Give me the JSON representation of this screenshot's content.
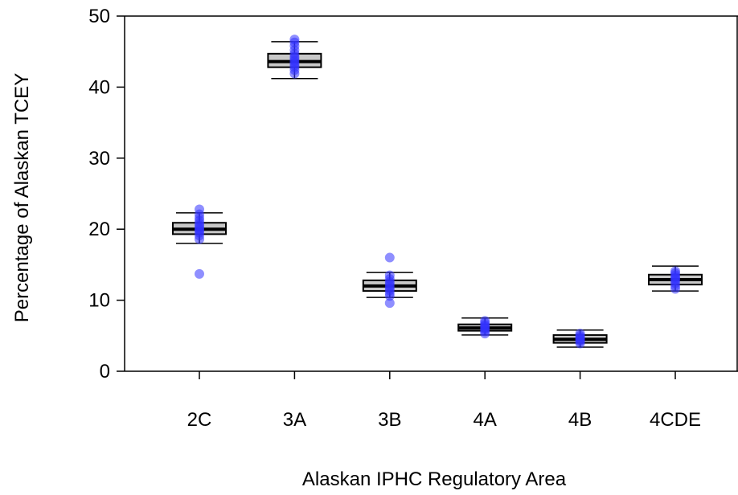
{
  "chart_data": {
    "type": "boxplot",
    "title": "",
    "xlabel": "Alaskan IPHC Regulatory Area",
    "ylabel": "Percentage of Alaskan TCEY",
    "ylim": [
      0,
      50
    ],
    "yticks": [
      0,
      10,
      20,
      30,
      40,
      50
    ],
    "categories": [
      "2C",
      "3A",
      "3B",
      "4A",
      "4B",
      "4CDE"
    ],
    "boxes": [
      {
        "category": "2C",
        "whisker_low": 18.0,
        "q1": 19.3,
        "median": 20.0,
        "q3": 20.9,
        "whisker_high": 22.3,
        "points": [
          13.7,
          18.6,
          19.1,
          19.5,
          19.8,
          20.0,
          20.2,
          20.5,
          20.8,
          21.2,
          21.6,
          22.1,
          22.8
        ]
      },
      {
        "category": "3A",
        "whisker_low": 41.2,
        "q1": 42.8,
        "median": 43.6,
        "q3": 44.7,
        "whisker_high": 46.4,
        "points": [
          41.9,
          42.4,
          42.8,
          43.1,
          43.4,
          43.7,
          44.0,
          44.3,
          44.7,
          45.2,
          45.8,
          46.3,
          46.7
        ]
      },
      {
        "category": "3B",
        "whisker_low": 10.4,
        "q1": 11.3,
        "median": 12.0,
        "q3": 12.8,
        "whisker_high": 13.9,
        "points": [
          9.6,
          10.6,
          11.0,
          11.4,
          11.7,
          12.0,
          12.3,
          12.6,
          13.0,
          13.5,
          16.0
        ]
      },
      {
        "category": "4A",
        "whisker_low": 5.1,
        "q1": 5.7,
        "median": 6.1,
        "q3": 6.6,
        "whisker_high": 7.5,
        "points": [
          5.3,
          5.6,
          5.9,
          6.1,
          6.3,
          6.5,
          6.8,
          7.1
        ]
      },
      {
        "category": "4B",
        "whisker_low": 3.4,
        "q1": 4.0,
        "median": 4.5,
        "q3": 5.1,
        "whisker_high": 5.8,
        "points": [
          3.9,
          4.2,
          4.4,
          4.6,
          4.8,
          5.0,
          5.3
        ]
      },
      {
        "category": "4CDE",
        "whisker_low": 11.3,
        "q1": 12.2,
        "median": 12.9,
        "q3": 13.6,
        "whisker_high": 14.8,
        "points": [
          11.6,
          12.0,
          12.4,
          12.8,
          13.0,
          13.2,
          13.5,
          13.8,
          14.1
        ]
      }
    ],
    "colors": {
      "box_fill": "#c8c8c8",
      "point": "#3333ff",
      "line": "#000000"
    }
  }
}
